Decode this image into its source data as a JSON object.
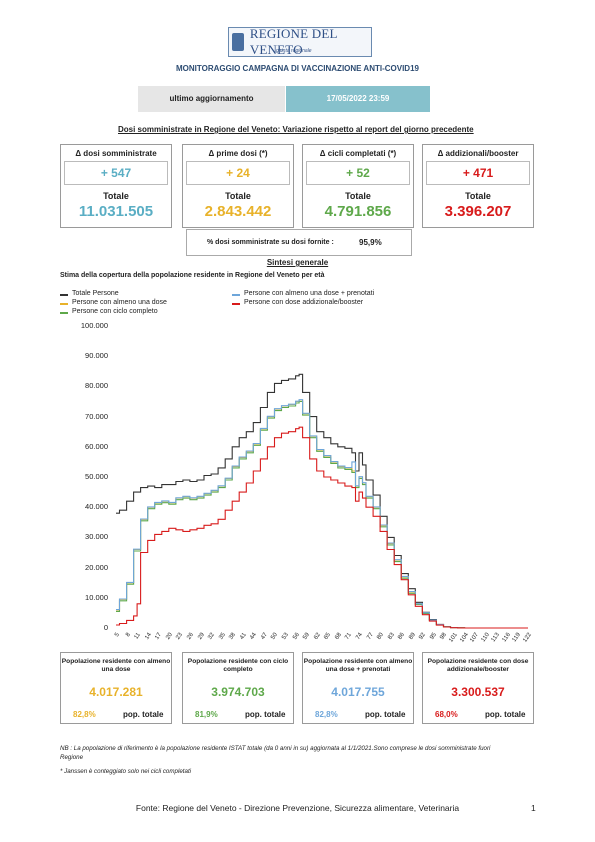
{
  "header": {
    "logo_text": "REGIONE DEL VENETO",
    "logo_sub": "giunta regionale",
    "title": "MONITORAGGIO CAMPAGNA DI VACCINAZIONE ANTI-COVID19",
    "update_label": "ultimo aggiornamento",
    "update_value": "17/05/2022 23:59"
  },
  "dosi": {
    "title": "Dosi somministrate in Regione del Veneto: Variazione rispetto al report del giorno precedente",
    "cards": [
      {
        "head": "Δ dosi somministrate",
        "delta": "+ 547",
        "total_label": "Totale",
        "total": "11.031.505",
        "color": "#5aaec4"
      },
      {
        "head": "Δ prime dosi (*)",
        "delta": "+ 24",
        "total_label": "Totale",
        "total": "2.843.442",
        "color": "#e8b22a"
      },
      {
        "head": "Δ cicli completati (*)",
        "delta": "+ 52",
        "total_label": "Totale",
        "total": "4.791.856",
        "color": "#5ea84a"
      },
      {
        "head": "Δ addizionali/booster",
        "delta": "+ 471",
        "total_label": "Totale",
        "total": "3.396.207",
        "color": "#d81b1b"
      }
    ],
    "pct_label": "% dosi somministrate su dosi fornite :",
    "pct_value": "95,9%"
  },
  "sintesi": {
    "title": "Sintesi generale",
    "chart_title": "Stima della copertura della popolazione residente in Regione del Veneto per età"
  },
  "chart_data": {
    "type": "line",
    "title": "Stima della copertura della popolazione residente in Regione del Veneto per età",
    "xlabel": "",
    "ylabel": "",
    "ylim": [
      0,
      100000
    ],
    "xlim": [
      5,
      122
    ],
    "y_ticks": [
      "0",
      "10.000",
      "20.000",
      "30.000",
      "40.000",
      "50.000",
      "60.000",
      "70.000",
      "80.000",
      "90.000",
      "100.000"
    ],
    "x_ticks": [
      "5",
      "8",
      "11",
      "14",
      "17",
      "20",
      "23",
      "26",
      "29",
      "32",
      "35",
      "38",
      "41",
      "44",
      "47",
      "50",
      "53",
      "56",
      "59",
      "62",
      "65",
      "68",
      "71",
      "74",
      "77",
      "80",
      "83",
      "86",
      "89",
      "92",
      "95",
      "98",
      "101",
      "104",
      "107",
      "110",
      "113",
      "116",
      "119",
      "122"
    ],
    "grid": false,
    "legend_position": "top",
    "series": [
      {
        "name": "Totale Persone",
        "color": "#333333",
        "x": [
          5,
          6,
          8,
          10,
          12,
          14,
          16,
          18,
          20,
          22,
          24,
          26,
          28,
          30,
          32,
          34,
          36,
          38,
          40,
          42,
          44,
          46,
          48,
          50,
          52,
          54,
          56,
          57,
          58,
          60,
          62,
          64,
          66,
          68,
          70,
          72,
          73,
          74,
          75,
          76,
          78,
          80,
          82,
          84,
          86,
          88,
          90,
          92,
          94,
          96,
          98,
          100,
          102,
          104,
          106,
          110,
          116,
          122
        ],
        "y": [
          38000,
          39000,
          42000,
          45000,
          46500,
          47000,
          46500,
          47500,
          47500,
          48500,
          49000,
          48500,
          49000,
          50500,
          51000,
          53000,
          56000,
          60000,
          63000,
          65000,
          68000,
          73000,
          78000,
          81000,
          82000,
          82500,
          83500,
          84000,
          78000,
          70000,
          65000,
          63000,
          61000,
          60000,
          59500,
          58000,
          52000,
          58000,
          54000,
          49000,
          44000,
          37000,
          30000,
          24000,
          18000,
          13000,
          8500,
          5200,
          2800,
          1200,
          450,
          150,
          50,
          15,
          0,
          0,
          0,
          0
        ]
      },
      {
        "name": "Persone con almeno una dose",
        "color": "#e8b22a",
        "x": [
          5,
          6,
          8,
          10,
          12,
          14,
          16,
          18,
          20,
          22,
          24,
          26,
          28,
          30,
          32,
          34,
          36,
          38,
          40,
          42,
          44,
          46,
          48,
          50,
          52,
          54,
          56,
          57,
          58,
          60,
          62,
          64,
          66,
          68,
          70,
          72,
          73,
          74,
          75,
          76,
          78,
          80,
          82,
          84,
          86,
          88,
          90,
          92,
          94,
          96,
          98,
          100,
          102,
          104,
          106,
          110,
          116,
          122
        ],
        "y": [
          6000,
          9500,
          15000,
          26000,
          36000,
          40000,
          41500,
          42000,
          41500,
          43000,
          43500,
          43000,
          43500,
          44500,
          45500,
          47000,
          49500,
          53500,
          56500,
          58500,
          61000,
          66000,
          70000,
          72500,
          73500,
          74000,
          75000,
          75500,
          71000,
          63500,
          59000,
          57000,
          55000,
          53500,
          53000,
          52000,
          47000,
          50000,
          48000,
          43500,
          40000,
          34000,
          28000,
          22500,
          17000,
          12000,
          8000,
          5000,
          2600,
          1100,
          400,
          130,
          40,
          10,
          0,
          0,
          0,
          0
        ]
      },
      {
        "name": "Persone con ciclo completo",
        "color": "#5ea84a",
        "x": [
          5,
          6,
          8,
          10,
          12,
          14,
          16,
          18,
          20,
          22,
          24,
          26,
          28,
          30,
          32,
          34,
          36,
          38,
          40,
          42,
          44,
          46,
          48,
          50,
          52,
          54,
          56,
          57,
          58,
          60,
          62,
          64,
          66,
          68,
          70,
          72,
          73,
          74,
          75,
          76,
          78,
          80,
          82,
          84,
          86,
          88,
          90,
          92,
          94,
          96,
          98,
          100,
          102,
          104,
          106,
          110,
          116,
          122
        ],
        "y": [
          5500,
          9000,
          14500,
          25500,
          35500,
          39500,
          41000,
          41500,
          41000,
          42500,
          43000,
          42500,
          43000,
          44000,
          45000,
          46500,
          49000,
          53000,
          56000,
          58000,
          60500,
          65500,
          69500,
          72000,
          73000,
          73500,
          74500,
          75000,
          70500,
          63000,
          58500,
          56500,
          54500,
          53000,
          52500,
          51500,
          46500,
          49500,
          47500,
          43000,
          39500,
          33500,
          27500,
          22000,
          16500,
          11500,
          7800,
          4800,
          2500,
          1050,
          380,
          120,
          35,
          8,
          0,
          0,
          0,
          0
        ]
      },
      {
        "name": "Persone con almeno una dose + prenotati",
        "color": "#6ea6da",
        "x": [
          5,
          6,
          8,
          10,
          12,
          14,
          16,
          18,
          20,
          22,
          24,
          26,
          28,
          30,
          32,
          34,
          36,
          38,
          40,
          42,
          44,
          46,
          48,
          50,
          52,
          54,
          56,
          57,
          58,
          60,
          62,
          64,
          66,
          68,
          70,
          72,
          73,
          74,
          75,
          76,
          78,
          80,
          82,
          84,
          86,
          88,
          90,
          92,
          94,
          96,
          98,
          100,
          102,
          104,
          106,
          110,
          116,
          122
        ],
        "y": [
          6100,
          9600,
          15100,
          26100,
          36100,
          40100,
          41600,
          42100,
          41600,
          43100,
          43600,
          43100,
          43600,
          44600,
          45600,
          47100,
          49600,
          53600,
          56600,
          58600,
          61100,
          66100,
          70100,
          72600,
          73600,
          74100,
          75100,
          75600,
          71100,
          63600,
          59100,
          57100,
          55100,
          53600,
          53100,
          55000,
          47100,
          50100,
          48100,
          43600,
          40100,
          34100,
          28100,
          22600,
          17100,
          12100,
          8050,
          5050,
          2650,
          1120,
          410,
          135,
          42,
          11,
          0,
          0,
          0,
          0
        ]
      },
      {
        "name": "Persone con dose addizionale/booster",
        "color": "#d81b1b",
        "x": [
          5,
          6,
          8,
          10,
          11,
          12,
          14,
          16,
          18,
          20,
          22,
          24,
          26,
          28,
          30,
          32,
          34,
          36,
          38,
          40,
          42,
          44,
          46,
          48,
          50,
          52,
          54,
          56,
          57,
          58,
          60,
          62,
          64,
          66,
          68,
          70,
          72,
          73,
          74,
          75,
          76,
          78,
          80,
          82,
          84,
          86,
          88,
          90,
          92,
          94,
          96,
          98,
          100,
          102,
          104,
          106,
          110,
          116,
          122
        ],
        "y": [
          1000,
          1500,
          2500,
          4000,
          8000,
          25000,
          29000,
          31000,
          32000,
          33000,
          32500,
          32000,
          32500,
          33000,
          34000,
          34500,
          36000,
          39000,
          42000,
          45000,
          48000,
          52000,
          56000,
          60000,
          63000,
          64500,
          65000,
          66000,
          66500,
          63000,
          56000,
          52000,
          50000,
          49000,
          48000,
          47000,
          46500,
          42000,
          45000,
          43000,
          40000,
          37000,
          32000,
          26000,
          21000,
          16000,
          11000,
          7200,
          4400,
          2300,
          950,
          330,
          100,
          30,
          5,
          0,
          0,
          0,
          0
        ]
      }
    ]
  },
  "pop_cards": [
    {
      "head": "Popolazione residente con almeno una dose",
      "value": "4.017.281",
      "pct": "82,8%",
      "pop_label": "pop. totale",
      "color": "#e8b22a"
    },
    {
      "head": "Popolazione residente con ciclo completo",
      "value": "3.974.703",
      "pct": "81,9%",
      "pop_label": "pop. totale",
      "color": "#5ea84a"
    },
    {
      "head": "Popolazione residente con almeno una dose + prenotati",
      "value": "4.017.755",
      "pct": "82,8%",
      "pop_label": "pop. totale",
      "color": "#6ea6da"
    },
    {
      "head": "Popolazione residente con dose addizionale/booster",
      "value": "3.300.537",
      "pct": "68,0%",
      "pop_label": "pop. totale",
      "color": "#d81b1b"
    }
  ],
  "notes": {
    "nb": "NB : La popolazione di riferimento è la popolazione residente ISTAT totale (da 0 anni in su) aggiornata  al 1/1/2021.Sono comprese le dosi somministrate fuori Regione",
    "janssen": "* Janssen è conteggiato solo nei cicli completati"
  },
  "footer": {
    "fonte": "Fonte: Regione del Veneto - Direzione Prevenzione, Sicurezza alimentare, Veterinaria",
    "page": "1"
  }
}
